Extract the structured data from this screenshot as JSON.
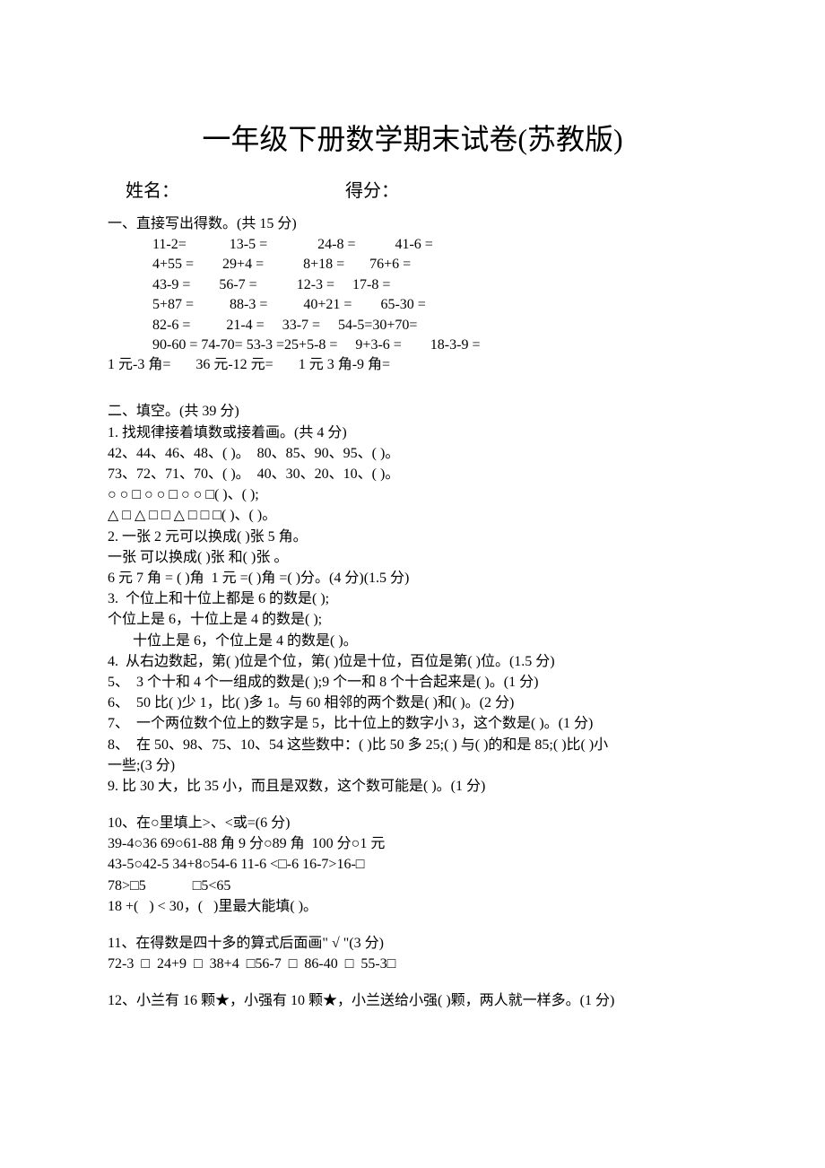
{
  "title": "一年级下册数学期末试卷(苏教版)",
  "header": {
    "name_label": "姓名：",
    "score_label": "得分："
  },
  "section1": {
    "header": "一、直接写出得数。(共 15 分)",
    "lines": [
      "11-2=            13-5 =              24-8 =           41-6 =",
      "4+55 =        29+4 =           8+18 =       76+6 =",
      "43-9 =        56-7 =           12-3 =     17-8 =",
      "5+87 =          88-3 =          40+21 =        65-30 =",
      "82-6 =          21-4 =     33-7 =     54-5=30+70=",
      "90-60 = 74-70= 53-3 =25+5-8 =     9+3-6 =        18-3-9 ="
    ],
    "last_line": "1 元-3 角=       36 元-12 元=       1 元 3 角-9 角="
  },
  "section2": {
    "header": "二、填空。(共 39 分)",
    "q1_header": "1. 找规律接着填数或接着画。(共 4 分)",
    "q1_lines": [
      "42、44、46、48、( )。  80、85、90、95、( )。",
      "73、72、71、70、( )。  40、30、20、10、( )。",
      "○ ○ □ ○ ○ □ ○ ○ □( )、( );",
      "△ □ △ □ □ △ □ □ □( )、( )。"
    ],
    "q2_lines": [
      "2. 一张 2 元可以换成( )张 5 角。",
      "一张 可以换成( )张 和( )张 。",
      "6 元 7 角 = ( )角  1 元 =( )角 =( )分。(4 分)(1.5 分)"
    ],
    "q3_lines": [
      "3.  个位上和十位上都是 6 的数是( );",
      "个位上是 6，十位上是 4 的数是( );",
      "       十位上是 6，个位上是 4 的数是( )。"
    ],
    "q4": "4.  从右边数起，第( )位是个位，第( )位是十位，百位是第( )位。(1.5 分)",
    "q5": "5、  3 个十和 4 个一组成的数是( );9 个一和 8 个十合起来是( )。(1 分)",
    "q6": "6、  50 比( )少 1，比( )多 1。与 60 相邻的两个数是( )和( )。(2 分)",
    "q7": "7、  一个两位数个位上的数字是 5，比十位上的数字小 3，这个数是( )。(1 分)",
    "q8_lines": [
      "8、  在 50、98、75、10、54 这些数中：( )比 50 多 25;( ) 与( )的和是 85;( )比( )小",
      "一些;(3 分)"
    ],
    "q9": "9. 比 30 大，比 35 小，而且是双数，这个数可能是( )。(1 分)",
    "q10_header": "10、在○里填上>、<或=(6 分)",
    "q10_lines": [
      "39-4○36 69○61-88 角 9 分○89 角  100 分○1 元",
      "43-5○42-5 34+8○54-6 11-6 <□-6 16-7>16-□",
      "78>□5             □5<65",
      "18 +(   ) < 30，(   )里最大能填( )。"
    ],
    "q11_header": "11、在得数是四十多的算式后面画\" √ \"(3 分)",
    "q11_line": "72-3  □  24+9  □  38+4  □56-7  □  86-40  □  55-3□",
    "q12": "12、小兰有 16 颗★，小强有 10 颗★，小兰送给小强( )颗，两人就一样多。(1 分)"
  }
}
